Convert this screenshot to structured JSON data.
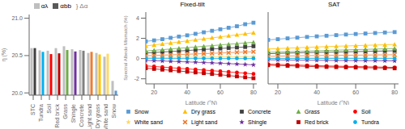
{
  "chart_data": [
    {
      "type": "bar",
      "ylabel": "η (%)",
      "categories": [
        "STC",
        "Tundra",
        "Soil",
        "Red brick",
        "Grass",
        "Shingle",
        "Concrete",
        "Light sand",
        "Dry grass",
        "White sand",
        "Snow"
      ],
      "series": [
        {
          "name": "αλ",
          "color": "#bfbfbf",
          "values": [
            20.6,
            20.57,
            20.565,
            20.6,
            20.625,
            20.585,
            20.575,
            20.535,
            20.535,
            20.485,
            20.16
          ]
        },
        {
          "name": "αbb",
          "color": "#595959",
          "colors": [
            "#404040",
            "#00b0f0",
            "#ff0000",
            "#c00000",
            "#70ad47",
            "#7030a0",
            "#808080",
            "#ed7d31",
            "#ffc000",
            "#ffd966",
            "#5b9bd5"
          ],
          "values": [
            20.6,
            20.55,
            20.52,
            20.53,
            20.575,
            20.555,
            20.565,
            20.55,
            20.515,
            20.525,
            20.03
          ]
        }
      ],
      "ylim": [
        19.97,
        21.05
      ],
      "yticks": [
        {
          "value": 20.0,
          "label": "20.0"
        },
        20.5,
        {
          "value": 21.0,
          "label": "21.0"
        }
      ],
      "legend": "top",
      "annotation": "} Δα",
      "grid": false
    },
    {
      "type": "line",
      "title": "Fixed-tilt",
      "xlabel": "Latitude (°N)",
      "ylabel": "Spectral Albedo Mismatch (%)",
      "x": [
        15,
        20,
        25,
        30,
        35,
        40,
        45,
        50,
        55,
        60,
        65,
        70,
        75,
        80
      ],
      "xlim": [
        15,
        82
      ],
      "xticks": [
        20,
        40,
        60,
        80
      ],
      "ylim": [
        -2.5,
        4.6
      ],
      "yticks": [
        -2,
        0,
        2,
        4
      ],
      "grid": false,
      "legend": "bottom",
      "series": [
        {
          "name": "Snow",
          "color": "#5b9bd5",
          "marker": "square",
          "values": [
            1.7,
            1.8,
            1.92,
            2.05,
            2.18,
            2.3,
            2.45,
            2.6,
            2.75,
            2.9,
            3.05,
            3.2,
            3.4,
            3.55
          ]
        },
        {
          "name": "Dry grass",
          "color": "#ffc000",
          "marker": "triangle",
          "values": [
            1.25,
            1.35,
            1.45,
            1.55,
            1.65,
            1.75,
            1.85,
            1.95,
            2.05,
            2.15,
            2.25,
            2.35,
            2.45,
            2.55
          ]
        },
        {
          "name": "Concrete",
          "color": "#404040",
          "marker": "square",
          "values": [
            0.55,
            0.6,
            0.65,
            0.7,
            0.75,
            0.8,
            0.85,
            0.9,
            0.95,
            1.0,
            1.05,
            1.1,
            1.15,
            1.22
          ]
        },
        {
          "name": "Grass",
          "color": "#70ad47",
          "marker": "triangle",
          "values": [
            0.75,
            0.82,
            0.88,
            0.95,
            1.02,
            1.08,
            1.15,
            1.22,
            1.28,
            1.35,
            1.42,
            1.48,
            1.55,
            1.62
          ]
        },
        {
          "name": "Soil",
          "color": "#ff0000",
          "marker": "circle",
          "values": [
            -0.72,
            -0.78,
            -0.84,
            -0.9,
            -0.96,
            -1.02,
            -1.08,
            -1.14,
            -1.2,
            -1.26,
            -1.32,
            -1.38,
            -1.45,
            -1.52
          ]
        },
        {
          "name": "White sand",
          "color": "#ffd966",
          "marker": "star",
          "values": [
            0.08,
            0.09,
            0.1,
            0.11,
            0.12,
            0.13,
            0.14,
            0.15,
            0.16,
            0.17,
            0.18,
            0.19,
            0.2,
            0.21
          ]
        },
        {
          "name": "Light sand",
          "color": "#ed7d31",
          "marker": "cross",
          "values": [
            0.28,
            0.31,
            0.34,
            0.37,
            0.4,
            0.43,
            0.46,
            0.49,
            0.52,
            0.55,
            0.58,
            0.62,
            0.65,
            0.68
          ]
        },
        {
          "name": "Shingle",
          "color": "#7030a0",
          "marker": "star",
          "values": [
            -0.18,
            -0.21,
            -0.24,
            -0.27,
            -0.3,
            -0.33,
            -0.36,
            -0.39,
            -0.42,
            -0.46,
            -0.5,
            -0.54,
            -0.58,
            -0.62
          ]
        },
        {
          "name": "Red brick",
          "color": "#c00000",
          "marker": "square",
          "values": [
            -0.95,
            -1.02,
            -1.09,
            -1.16,
            -1.23,
            -1.3,
            -1.37,
            -1.44,
            -1.52,
            -1.6,
            -1.68,
            -1.76,
            -1.85,
            -1.94
          ]
        },
        {
          "name": "Tundra",
          "color": "#00b0f0",
          "marker": "circle",
          "values": [
            0.02,
            0.02,
            0.02,
            0.02,
            0.02,
            0.02,
            0.02,
            0.02,
            0.02,
            0.02,
            0.02,
            0.02,
            0.02,
            0.02
          ]
        }
      ]
    },
    {
      "type": "line",
      "title": "SAT",
      "xlabel": "Latitude (°N)",
      "x": [
        15,
        20,
        25,
        30,
        35,
        40,
        45,
        50,
        55,
        60,
        65,
        70,
        75,
        80
      ],
      "xlim": [
        15,
        82
      ],
      "xticks": [
        20,
        40,
        60,
        80
      ],
      "ylim": [
        -2.5,
        4.6
      ],
      "yticks": [
        -2,
        0,
        2,
        4
      ],
      "tick_labels": "x",
      "grid": false,
      "legend": "bottom",
      "series": [
        {
          "name": "Snow",
          "color": "#5b9bd5",
          "marker": "square",
          "values": [
            1.85,
            1.92,
            2.0,
            2.07,
            2.14,
            2.2,
            2.26,
            2.32,
            2.38,
            2.43,
            2.48,
            2.53,
            2.58,
            2.62
          ]
        },
        {
          "name": "Dry grass",
          "color": "#ffc000",
          "marker": "triangle",
          "values": [
            0.95,
            0.99,
            1.03,
            1.07,
            1.11,
            1.15,
            1.19,
            1.22,
            1.25,
            1.28,
            1.31,
            1.34,
            1.37,
            1.4
          ]
        },
        {
          "name": "Concrete",
          "color": "#404040",
          "marker": "square",
          "values": [
            0.48,
            0.51,
            0.54,
            0.57,
            0.59,
            0.61,
            0.63,
            0.65,
            0.67,
            0.69,
            0.71,
            0.73,
            0.75,
            0.77
          ]
        },
        {
          "name": "Grass",
          "color": "#70ad47",
          "marker": "triangle",
          "values": [
            0.62,
            0.65,
            0.68,
            0.71,
            0.74,
            0.77,
            0.8,
            0.83,
            0.86,
            0.89,
            0.91,
            0.94,
            0.97,
            1.0
          ]
        },
        {
          "name": "Soil",
          "color": "#ff0000",
          "marker": "circle",
          "values": [
            -0.55,
            -0.58,
            -0.61,
            -0.64,
            -0.67,
            -0.7,
            -0.73,
            -0.75,
            -0.77,
            -0.79,
            -0.81,
            -0.83,
            -0.85,
            -0.87
          ]
        },
        {
          "name": "White sand",
          "color": "#ffd966",
          "marker": "star",
          "values": [
            0.06,
            0.07,
            0.07,
            0.08,
            0.08,
            0.09,
            0.09,
            0.1,
            0.1,
            0.11,
            0.11,
            0.11,
            0.12,
            0.12
          ]
        },
        {
          "name": "Light sand",
          "color": "#ed7d31",
          "marker": "cross",
          "values": [
            0.22,
            0.24,
            0.26,
            0.27,
            0.29,
            0.3,
            0.31,
            0.32,
            0.33,
            0.34,
            0.35,
            0.36,
            0.37,
            0.38
          ]
        },
        {
          "name": "Shingle",
          "color": "#7030a0",
          "marker": "star",
          "values": [
            -0.12,
            -0.13,
            -0.14,
            -0.15,
            -0.16,
            -0.17,
            -0.18,
            -0.19,
            -0.19,
            -0.2,
            -0.21,
            -0.21,
            -0.22,
            -0.23
          ]
        },
        {
          "name": "Red brick",
          "color": "#c00000",
          "marker": "square",
          "values": [
            -0.65,
            -0.68,
            -0.71,
            -0.74,
            -0.77,
            -0.8,
            -0.82,
            -0.84,
            -0.86,
            -0.88,
            -0.9,
            -0.92,
            -0.94,
            -0.96
          ]
        },
        {
          "name": "Tundra",
          "color": "#00b0f0",
          "marker": "circle",
          "values": [
            0.01,
            0.01,
            0.01,
            0.01,
            0.01,
            0.01,
            0.01,
            0.01,
            0.01,
            0.01,
            0.01,
            0.01,
            0.01,
            0.01
          ]
        }
      ]
    }
  ]
}
